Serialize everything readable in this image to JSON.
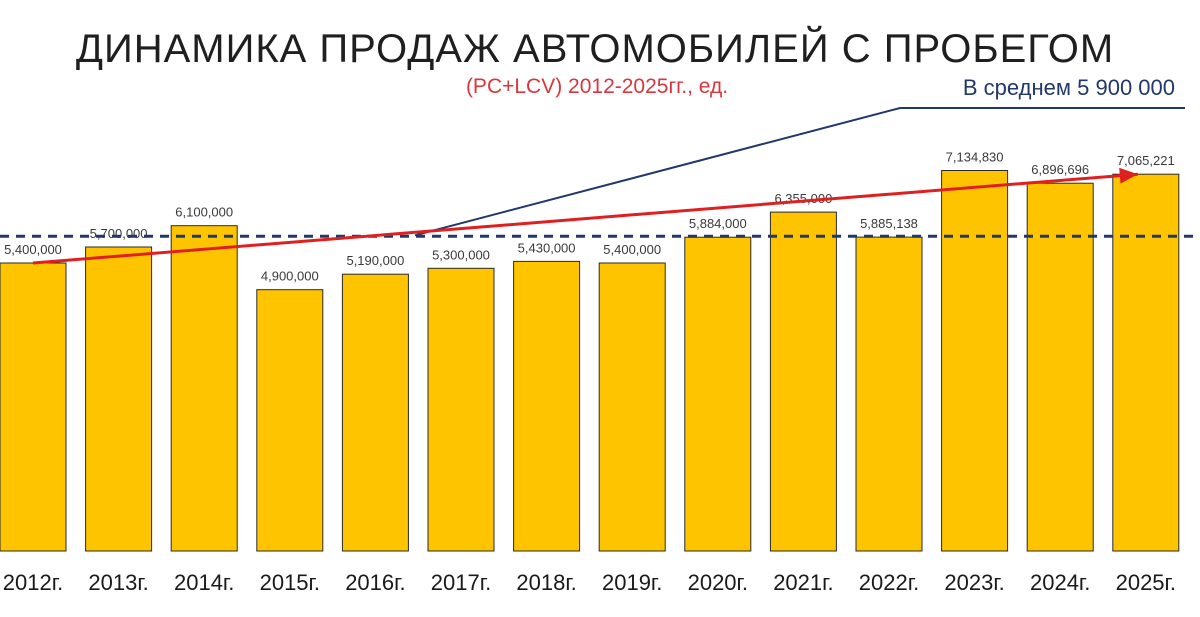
{
  "chart_data": {
    "type": "bar",
    "title": "ДИНАМИКА ПРОДАЖ АВТОМОБИЛЕЙ С ПРОБЕГОМ",
    "subtitle": "(PC+LCV) 2012-2025гг., ед.",
    "average_label": "В среднем 5 900 000",
    "average_value": 5900000,
    "categories": [
      "2012г.",
      "2013г.",
      "2014г.",
      "2015г.",
      "2016г.",
      "2017г.",
      "2018г.",
      "2019г.",
      "2020г.",
      "2021г.",
      "2022г.",
      "2023г.",
      "2024г.",
      "2025г."
    ],
    "values": [
      5400000,
      5700000,
      6100000,
      4900000,
      5190000,
      5300000,
      5430000,
      5400000,
      5884000,
      6355000,
      5885138,
      7134830,
      6896696,
      7065221
    ],
    "data_labels": [
      "5,400,000",
      "5,700,000",
      "6,100,000",
      "4,900,000",
      "5,190,000",
      "5,300,000",
      "5,430,000",
      "5,400,000",
      "5,884,000",
      "6,355,000",
      "5,885,138",
      "7,134,830",
      "6,896,696",
      "7,065,221"
    ],
    "trend": {
      "start_value": 5400000,
      "end_value": 7065221,
      "color": "#e02020"
    },
    "colors": {
      "bar": "#ffc400",
      "average_line": "#22386a",
      "trend_arrow": "#e02020",
      "subtitle": "#d9363e"
    },
    "xlabel": "",
    "ylabel": "",
    "grid": false,
    "legend": "none"
  }
}
